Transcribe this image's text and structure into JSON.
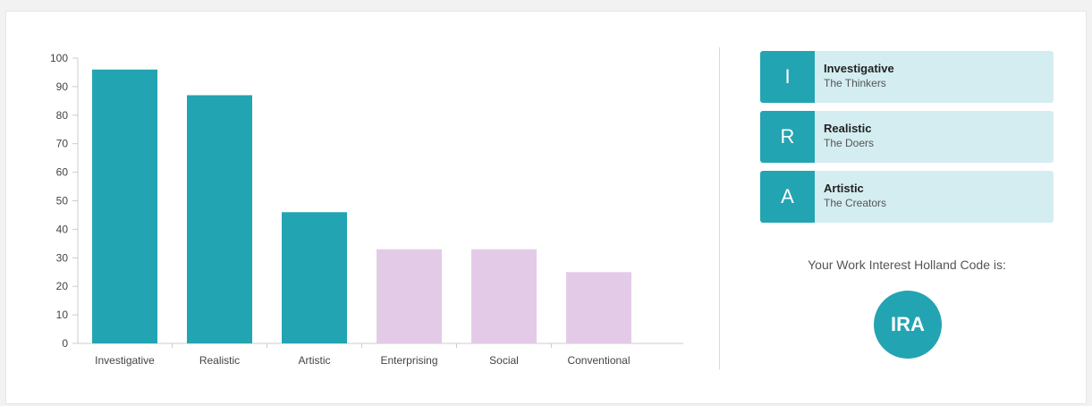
{
  "chart_data": {
    "type": "bar",
    "categories": [
      "Investigative",
      "Realistic",
      "Artistic",
      "Enterprising",
      "Social",
      "Conventional"
    ],
    "values": [
      96,
      87,
      46,
      33,
      33,
      25
    ],
    "colors": [
      "#23a4b3",
      "#23a4b3",
      "#23a4b3",
      "#e3cbe8",
      "#e3cbe8",
      "#e3cbe8"
    ],
    "ylim": [
      0,
      100
    ],
    "yticks": [
      0,
      10,
      20,
      30,
      40,
      50,
      60,
      70,
      80,
      90,
      100
    ],
    "grid": false
  },
  "codes": [
    {
      "letter": "I",
      "name": "Investigative",
      "desc": "The Thinkers"
    },
    {
      "letter": "R",
      "name": "Realistic",
      "desc": "The Doers"
    },
    {
      "letter": "A",
      "name": "Artistic",
      "desc": "The Creators"
    }
  ],
  "holland": {
    "label": "Your Work Interest Holland Code is:",
    "code": "IRA"
  },
  "theme": {
    "accent": "#23a4b3",
    "light_accent": "#d4edf1",
    "muted_bar": "#e3cbe8"
  }
}
